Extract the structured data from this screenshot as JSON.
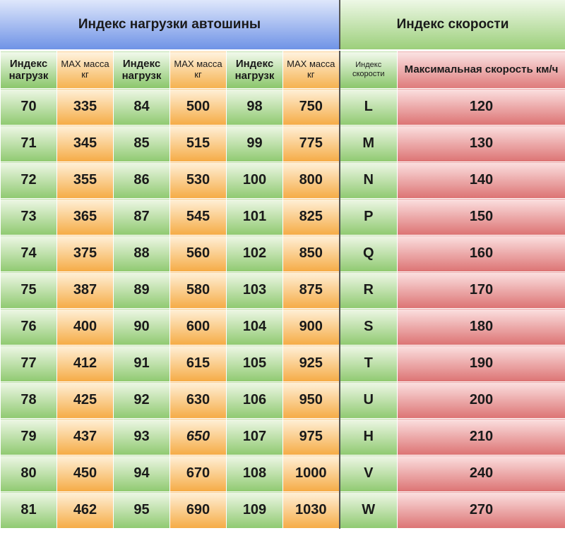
{
  "header": {
    "load_title": "Индекс нагрузки автошины",
    "speed_title": "Индекс скорости"
  },
  "columns": {
    "load_index": "Индекс нагрузк",
    "max_mass": "MAX масса кг",
    "speed_index": "Индекс скорости",
    "max_speed": "Максимальная скорость км/ч"
  },
  "rows": [
    {
      "l1": "70",
      "m1": "335",
      "l2": "84",
      "m2": "500",
      "l3": "98",
      "m3": "750",
      "s": "L",
      "v": "120"
    },
    {
      "l1": "71",
      "m1": "345",
      "l2": "85",
      "m2": "515",
      "l3": "99",
      "m3": "775",
      "s": "M",
      "v": "130"
    },
    {
      "l1": "72",
      "m1": "355",
      "l2": "86",
      "m2": "530",
      "l3": "100",
      "m3": "800",
      "s": "N",
      "v": "140"
    },
    {
      "l1": "73",
      "m1": "365",
      "l2": "87",
      "m2": "545",
      "l3": "101",
      "m3": "825",
      "s": "P",
      "v": "150"
    },
    {
      "l1": "74",
      "m1": "375",
      "l2": "88",
      "m2": "560",
      "l3": "102",
      "m3": "850",
      "s": "Q",
      "v": "160"
    },
    {
      "l1": "75",
      "m1": "387",
      "l2": "89",
      "m2": "580",
      "l3": "103",
      "m3": "875",
      "s": "R",
      "v": "170"
    },
    {
      "l1": "76",
      "m1": "400",
      "l2": "90",
      "m2": "600",
      "l3": "104",
      "m3": "900",
      "s": "S",
      "v": "180"
    },
    {
      "l1": "77",
      "m1": "412",
      "l2": "91",
      "m2": "615",
      "l3": "105",
      "m3": "925",
      "s": "T",
      "v": "190"
    },
    {
      "l1": "78",
      "m1": "425",
      "l2": "92",
      "m2": "630",
      "l3": "106",
      "m3": "950",
      "s": "U",
      "v": "200"
    },
    {
      "l1": "79",
      "m1": "437",
      "l2": "93",
      "m2": "650",
      "l3": "107",
      "m3": "975",
      "s": "H",
      "v": "210"
    },
    {
      "l1": "80",
      "m1": "450",
      "l2": "94",
      "m2": "670",
      "l3": "108",
      "m3": "1000",
      "s": "V",
      "v": "240"
    },
    {
      "l1": "81",
      "m1": "462",
      "l2": "95",
      "m2": "690",
      "l3": "109",
      "m3": "1030",
      "s": "W",
      "v": "270"
    }
  ],
  "colors": {
    "load_band": "#6f93e6",
    "speed_band": "#9ccf7b",
    "green": "#8fc970",
    "orange": "#f5ab45",
    "red": "#dc7373"
  }
}
